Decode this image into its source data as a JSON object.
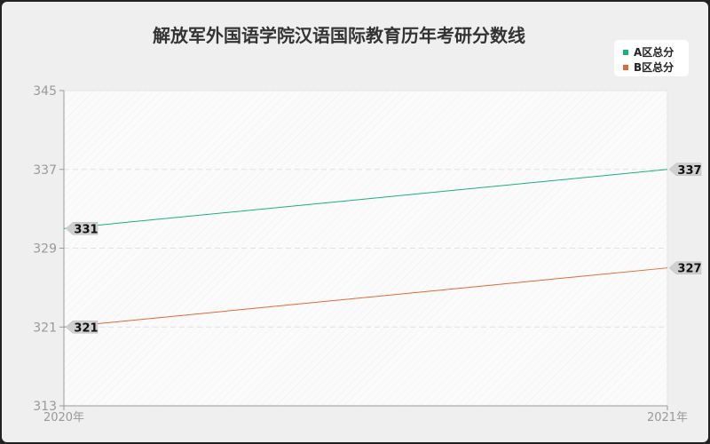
{
  "chart_data": {
    "type": "line",
    "title": "解放军外国语学院汉语国际教育历年考研分数线",
    "categories": [
      "2020年",
      "2021年"
    ],
    "series": [
      {
        "name": "A区总分",
        "values": [
          331,
          337
        ],
        "color": "#1aaf80"
      },
      {
        "name": "B区总分",
        "values": [
          321,
          327
        ],
        "color": "#e0693a"
      }
    ],
    "yticks": [
      313,
      321,
      329,
      337,
      345
    ],
    "ylim": [
      313,
      345
    ],
    "grid": true,
    "legend": "top-right"
  }
}
